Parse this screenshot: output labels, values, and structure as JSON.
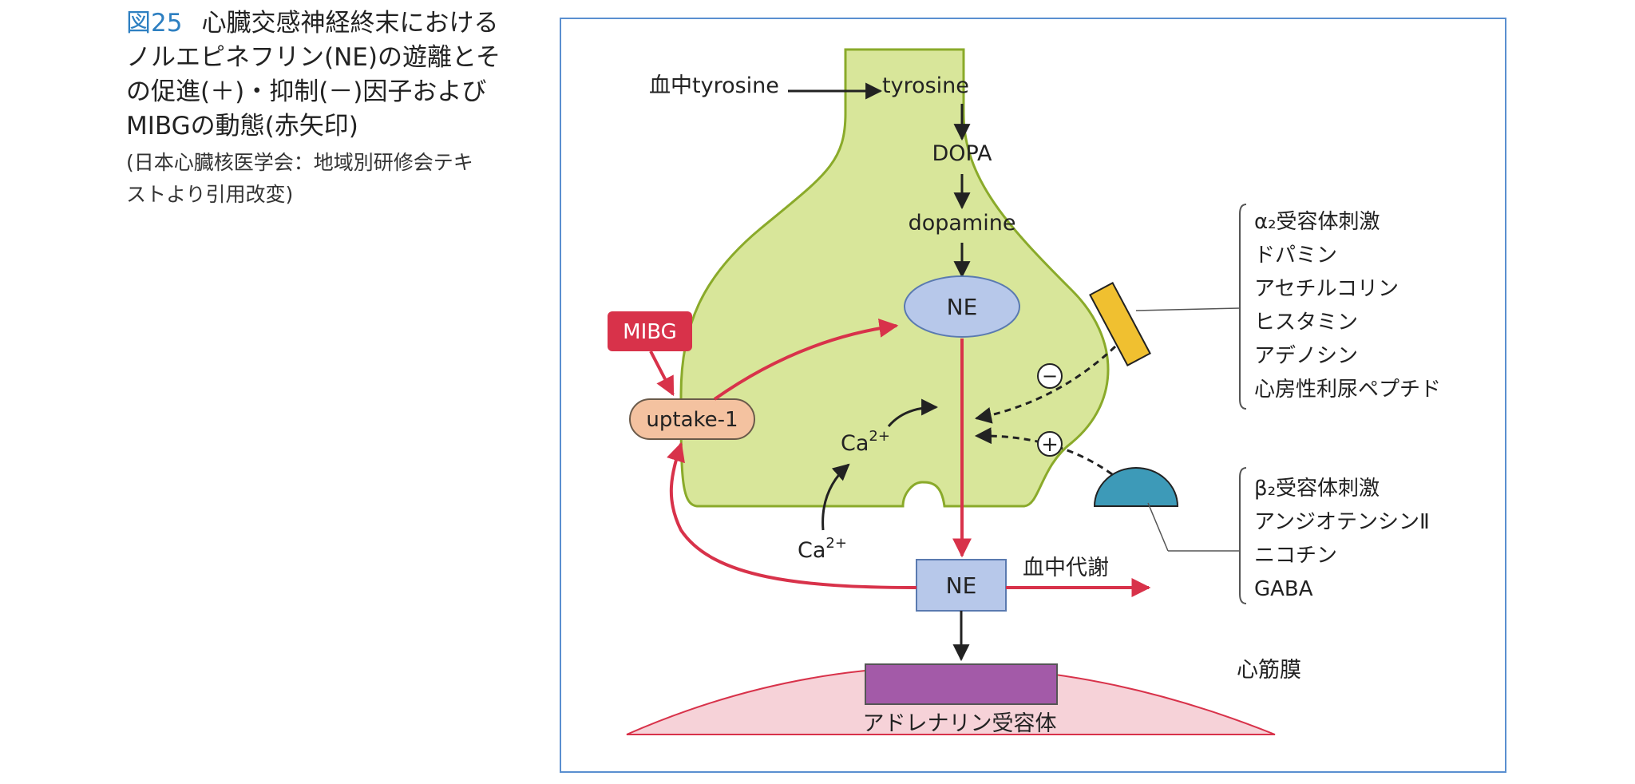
{
  "caption": {
    "figure_number": "図25",
    "title_line1": "心臓交感神経終末における",
    "title_line2": "ノルエピネフリン(NE)の遊離とそ",
    "title_line3": "の促進(＋)・抑制(－)因子および",
    "title_line4": "MIBGの動態(赤矢印)",
    "source_line1": "(日本心臓核医学会：地域別研修会テキ",
    "source_line2": "ストより引用改変)"
  },
  "diagram": {
    "blood_tyrosine": "血中tyrosine",
    "tyrosine": "tyrosine",
    "dopa": "DOPA",
    "dopamine": "dopamine",
    "ne_vesicle": "NE",
    "mibg": "MIBG",
    "uptake": "uptake-1",
    "ca_inner": "Ca",
    "ca_inner_sup": "2+",
    "ca_outer": "Ca",
    "ca_outer_sup": "2+",
    "ne_released": "NE",
    "blood_metabolism": "血中代謝",
    "cardiac_membrane": "心筋膜",
    "adrenergic_receptor": "アドレナリン受容体",
    "minus_sign": "−",
    "plus_sign": "+",
    "inhibitors": [
      "α₂受容体刺激",
      "ドパミン",
      "アセチルコリン",
      "ヒスタミン",
      "アデノシン",
      "心房性利尿ペプチド"
    ],
    "promoters": [
      "β₂受容体刺激",
      "アンジオテンシンⅡ",
      "ニコチン",
      "GABA"
    ]
  },
  "colors": {
    "terminal_fill": "#d8e69a",
    "terminal_stroke": "#8aaa2a",
    "ne_fill": "#b7c8ea",
    "mibg_red": "#d8324a",
    "uptake_fill": "#f4c2a0",
    "alpha_receptor": "#f0c030",
    "beta_receptor": "#3d9ab8",
    "membrane_fill": "#f6d2d8",
    "receptor_purple": "#a35aa8",
    "frame_blue": "#5a8fd0"
  }
}
